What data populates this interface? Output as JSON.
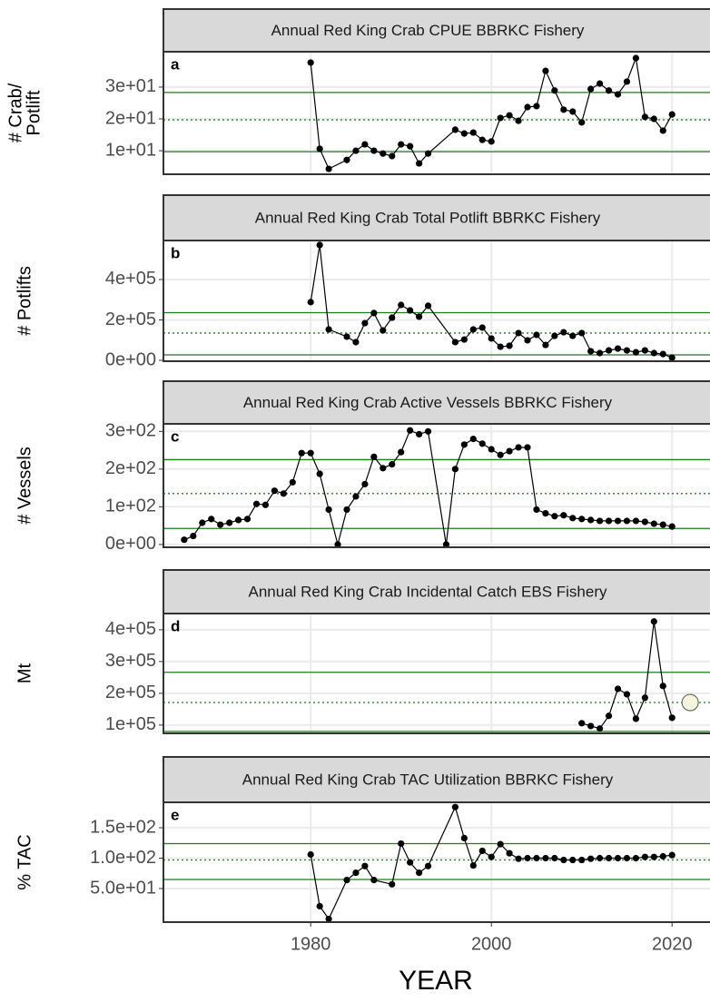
{
  "x_axis": {
    "label": "YEAR",
    "xlim": [
      1963.7,
      2024.2
    ],
    "xticks": [
      1980,
      2000,
      2020
    ]
  },
  "chart_data": [
    {
      "type": "line",
      "title": "Annual Red King Crab CPUE BBRKC Fishery",
      "tag": "a",
      "ylabel": [
        "# Crab/",
        "Potlift"
      ],
      "color": "#000000",
      "hline_color": "#1e7b1e",
      "x": [
        1980,
        1981,
        1982,
        1984,
        1985,
        1986,
        1987,
        1988,
        1989,
        1990,
        1991,
        1992,
        1993,
        1996,
        1997,
        1998,
        1999,
        2000,
        2001,
        2002,
        2003,
        2004,
        2005,
        2006,
        2007,
        2008,
        2009,
        2010,
        2011,
        2012,
        2013,
        2014,
        2015,
        2016,
        2017,
        2018,
        2019,
        2020
      ],
      "values": [
        37.7,
        10.6,
        4.3,
        7.1,
        10,
        12,
        10,
        9.1,
        8.3,
        12,
        11.4,
        6,
        9.1,
        16.6,
        15.4,
        15.7,
        13.4,
        12.9,
        20.3,
        21.1,
        19.4,
        23.7,
        24,
        35.1,
        28.9,
        22.9,
        22.3,
        18.9,
        29.4,
        31.1,
        28.9,
        27.7,
        31.7,
        39.1,
        20.6,
        20,
        16.3,
        21.4
      ],
      "ylim": [
        2.6,
        41.1
      ],
      "yticks": [
        {
          "value": 10,
          "label": "1e+01"
        },
        {
          "value": 20,
          "label": "2e+01"
        },
        {
          "value": 30,
          "label": "3e+01"
        }
      ],
      "hlines": [
        {
          "value": 28.3,
          "style": "solid"
        },
        {
          "value": 19.7,
          "style": "dotted"
        },
        {
          "value": 9.7,
          "style": "solid"
        }
      ]
    },
    {
      "type": "line",
      "title": "Annual Red King Crab Total Potlift BBRKC Fishery",
      "tag": "b",
      "ylabel": [
        "# Potlifts"
      ],
      "color": "#000000",
      "hline_color": "#1e7b1e",
      "x": [
        1980,
        1981,
        1982,
        1984,
        1985,
        1986,
        1987,
        1988,
        1989,
        1990,
        1991,
        1992,
        1993,
        1996,
        1997,
        1998,
        1999,
        2000,
        2001,
        2002,
        2003,
        2004,
        2005,
        2006,
        2007,
        2008,
        2009,
        2010,
        2011,
        2012,
        2013,
        2014,
        2015,
        2016,
        2017,
        2018,
        2019,
        2020
      ],
      "values": [
        288000,
        571000,
        153000,
        117000,
        90000,
        184000,
        234000,
        148000,
        211000,
        274000,
        247000,
        216000,
        270000,
        90000,
        103000,
        153000,
        162000,
        108000,
        67000,
        72000,
        135000,
        99000,
        126000,
        76000,
        121000,
        139000,
        121000,
        135000,
        45000,
        36000,
        49000,
        58000,
        49000,
        40000,
        49000,
        36000,
        31000,
        13000
      ],
      "ylim": [
        -4500,
        593000
      ],
      "yticks": [
        {
          "value": 0,
          "label": "0e+00"
        },
        {
          "value": 200000,
          "label": "2e+05"
        },
        {
          "value": 400000,
          "label": "4e+05"
        }
      ],
      "hlines": [
        {
          "value": 236000,
          "style": "solid"
        },
        {
          "value": 135000,
          "style": "dotted"
        },
        {
          "value": 27000,
          "style": "solid"
        }
      ]
    },
    {
      "type": "line",
      "title": "Annual Red King Crab Active Vessels BBRKC Fishery",
      "tag": "c",
      "ylabel": [
        "# Vessels"
      ],
      "color": "#000000",
      "hline_color": "#1e7b1e",
      "x": [
        1966,
        1967,
        1968,
        1969,
        1970,
        1971,
        1972,
        1973,
        1974,
        1975,
        1976,
        1977,
        1978,
        1979,
        1980,
        1981,
        1982,
        1983,
        1984,
        1985,
        1986,
        1987,
        1988,
        1989,
        1990,
        1991,
        1992,
        1993,
        1995,
        1996,
        1997,
        1998,
        1999,
        2000,
        2001,
        2002,
        2003,
        2004,
        2005,
        2006,
        2007,
        2008,
        2009,
        2010,
        2011,
        2012,
        2013,
        2014,
        2015,
        2016,
        2017,
        2018,
        2019,
        2020
      ],
      "values": [
        12.5,
        22.5,
        57.5,
        67.5,
        52.5,
        57.5,
        65,
        67.5,
        107.5,
        105,
        142.5,
        135,
        165,
        242.5,
        242.5,
        187.5,
        92.5,
        0,
        92.5,
        127.5,
        160,
        232.5,
        202.5,
        212.5,
        245,
        302.5,
        292.5,
        300,
        0,
        200,
        265,
        280,
        267.5,
        252.5,
        237.5,
        247.5,
        257.5,
        257.5,
        92.5,
        82.5,
        75,
        77.5,
        70,
        67.5,
        65,
        62.5,
        62.5,
        62.5,
        62.5,
        62.5,
        60,
        55,
        52.5,
        47.5
      ],
      "ylim": [
        -7.5,
        320
      ],
      "yticks": [
        {
          "value": 0,
          "label": "0e+00"
        },
        {
          "value": 100,
          "label": "1e+02"
        },
        {
          "value": 200,
          "label": "2e+02"
        },
        {
          "value": 300,
          "label": "3e+02"
        }
      ],
      "hlines": [
        {
          "value": 225,
          "style": "solid"
        },
        {
          "value": 135,
          "style": "dotted"
        },
        {
          "value": 42.5,
          "style": "solid"
        }
      ]
    },
    {
      "type": "line",
      "title": "Annual Red King Crab Incidental Catch EBS Fishery",
      "tag": "d",
      "ylabel": [
        "Mt"
      ],
      "color": "#000000",
      "hline_color": "#1e7b1e",
      "x": [
        2010,
        2011,
        2012,
        2013,
        2014,
        2015,
        2016,
        2017,
        2018,
        2019,
        2020
      ],
      "values": [
        106000,
        97000,
        89000,
        129000,
        214000,
        197000,
        120000,
        186000,
        426000,
        223000,
        123000
      ],
      "ylim": [
        74000,
        451000
      ],
      "yticks": [
        {
          "value": 100000,
          "label": "1e+05"
        },
        {
          "value": 200000,
          "label": "2e+05"
        },
        {
          "value": 300000,
          "label": "3e+05"
        },
        {
          "value": 400000,
          "label": "4e+05"
        }
      ],
      "hlines": [
        {
          "value": 266000,
          "style": "solid"
        },
        {
          "value": 171000,
          "style": "dotted"
        },
        {
          "value": 80000,
          "style": "solid"
        }
      ],
      "highlight": {
        "x": 2022,
        "value": 171000,
        "color": "#f5f5dc"
      }
    },
    {
      "type": "line",
      "title": "Annual Red King Crab TAC Utilization BBRKC Fishery",
      "tag": "e",
      "ylabel": [
        "% TAC"
      ],
      "color": "#000000",
      "hline_color": "#1e7b1e",
      "x": [
        1980,
        1981,
        1982,
        1984,
        1985,
        1986,
        1987,
        1989,
        1990,
        1991,
        1992,
        1993,
        1996,
        1997,
        1998,
        1999,
        2000,
        2001,
        2002,
        2003,
        2004,
        2005,
        2006,
        2007,
        2008,
        2009,
        2010,
        2011,
        2012,
        2013,
        2014,
        2015,
        2016,
        2017,
        2018,
        2019,
        2020
      ],
      "values": [
        106,
        21,
        0,
        64,
        76,
        87,
        64,
        57,
        124,
        93,
        76,
        87,
        184,
        133,
        88,
        112,
        102,
        123,
        108,
        99,
        100,
        100,
        100,
        100,
        97,
        97,
        97,
        99,
        100,
        100,
        100,
        100,
        100,
        102,
        102,
        103,
        105
      ],
      "ylim": [
        -5.2,
        191.8
      ],
      "yticks": [
        {
          "value": 50,
          "label": "5.0e+01"
        },
        {
          "value": 100,
          "label": "1.0e+02"
        },
        {
          "value": 150,
          "label": "1.5e+02"
        }
      ],
      "hlines": [
        {
          "value": 123.9,
          "style": "solid"
        },
        {
          "value": 97,
          "style": "dotted"
        },
        {
          "value": 64.9,
          "style": "solid"
        }
      ]
    }
  ]
}
